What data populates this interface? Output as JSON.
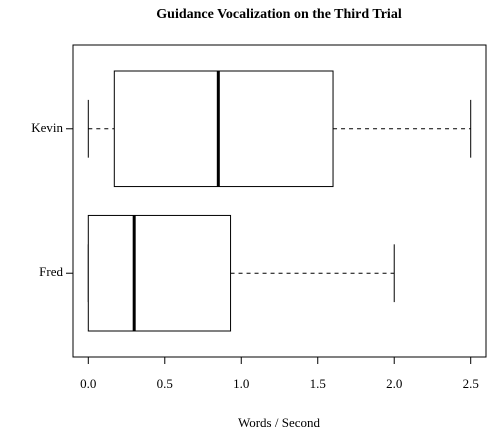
{
  "chart_data": {
    "type": "boxplot",
    "orientation": "horizontal",
    "title": "Guidance Vocalization on the Third Trial",
    "xlabel": "Words / Second",
    "categories": [
      "Fred",
      "Kevin"
    ],
    "boxes": [
      {
        "min": 0,
        "q1": 0,
        "median": 0.3,
        "q3": 0.93,
        "max": 2.0
      },
      {
        "min": 0,
        "q1": 0.17,
        "median": 0.85,
        "q3": 1.6,
        "max": 2.5
      }
    ],
    "color": "#000000",
    "xlim": [
      -0.1,
      2.6
    ],
    "xticks": [
      {
        "value": 0,
        "label": "0.0"
      },
      0.5,
      {
        "value": 1,
        "label": "1.0"
      },
      1.5,
      {
        "value": 2,
        "label": "2.0"
      },
      2.5
    ]
  }
}
